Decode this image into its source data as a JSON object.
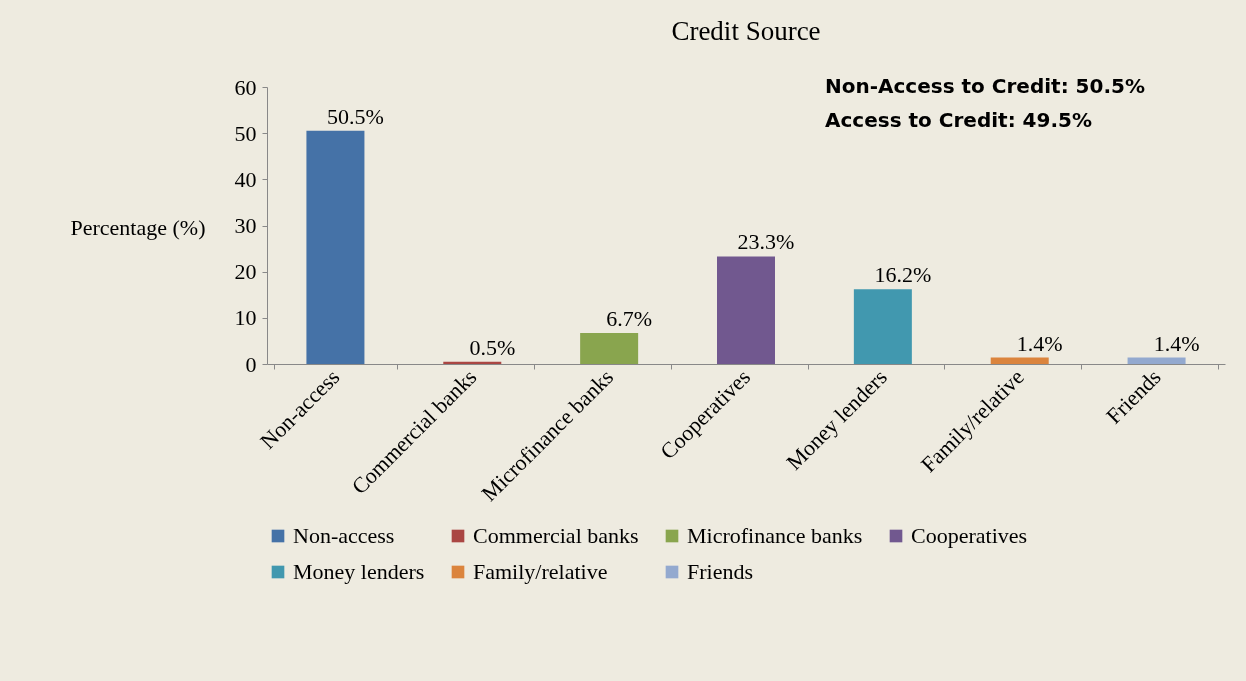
{
  "chart_data": {
    "type": "bar",
    "title": "Credit Source",
    "ylabel": "Percentage (%)",
    "categories": [
      "Non-access",
      "Commercial banks",
      "Microfinance banks",
      "Cooperatives",
      "Money lenders",
      "Family/relative",
      "Friends"
    ],
    "series": [
      {
        "name": "Non-access",
        "color": "#4572a7",
        "values": [
          50.5,
          null,
          null,
          null,
          null,
          null,
          null
        ],
        "value_labels": [
          "50.5%",
          null,
          null,
          null,
          null,
          null,
          null
        ]
      },
      {
        "name": "Commercial banks",
        "color": "#aa4643",
        "values": [
          null,
          0.5,
          null,
          null,
          null,
          null,
          null
        ],
        "value_labels": [
          null,
          "0.5%",
          null,
          null,
          null,
          null,
          null
        ]
      },
      {
        "name": "Microfinance banks",
        "color": "#89a54e",
        "values": [
          null,
          null,
          6.7,
          null,
          null,
          null,
          null
        ],
        "value_labels": [
          null,
          null,
          "6.7%",
          null,
          null,
          null,
          null
        ]
      },
      {
        "name": "Cooperatives",
        "color": "#71588f",
        "values": [
          null,
          null,
          null,
          23.3,
          null,
          null,
          null
        ],
        "value_labels": [
          null,
          null,
          null,
          "23.3%",
          null,
          null,
          null
        ]
      },
      {
        "name": "Money lenders",
        "color": "#4198af",
        "values": [
          null,
          null,
          null,
          null,
          16.2,
          null,
          null
        ],
        "value_labels": [
          null,
          null,
          null,
          null,
          "16.2%",
          null,
          null
        ]
      },
      {
        "name": "Family/relative",
        "color": "#db843d",
        "values": [
          null,
          null,
          null,
          null,
          null,
          1.4,
          null
        ],
        "value_labels": [
          null,
          null,
          null,
          null,
          null,
          "1.4%",
          null
        ]
      },
      {
        "name": "Friends",
        "color": "#93a9cf",
        "values": [
          null,
          null,
          null,
          null,
          null,
          null,
          1.4
        ],
        "value_labels": [
          null,
          null,
          null,
          null,
          null,
          null,
          "1.4%"
        ]
      }
    ],
    "ylim": [
      0,
      60
    ],
    "yticks": [
      0,
      10,
      20,
      30,
      40,
      50,
      60
    ],
    "grid": false,
    "legend": "bottom",
    "annotations": [
      "Non-Access to Credit: 50.5%",
      "Access to Credit: 49.5%"
    ]
  }
}
